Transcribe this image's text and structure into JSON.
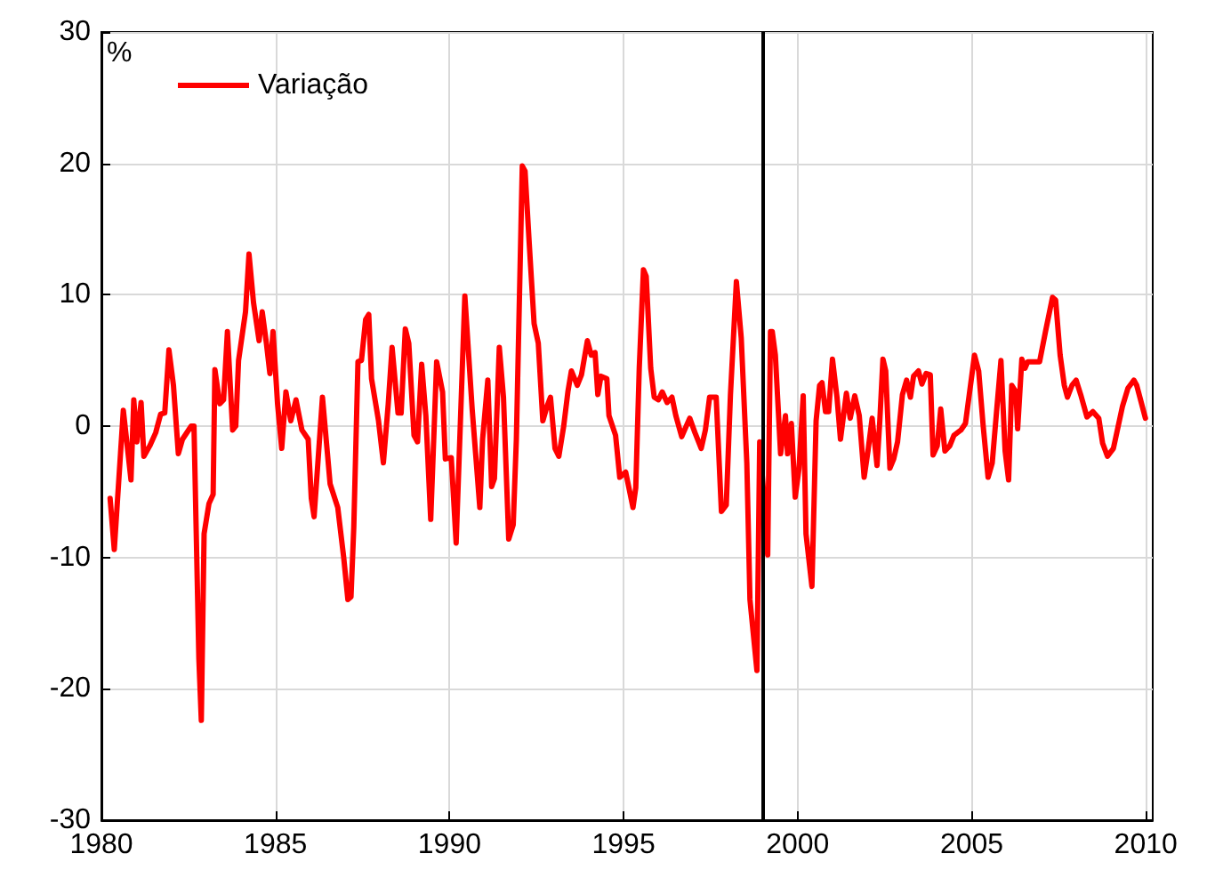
{
  "chart_data": {
    "type": "line",
    "ylabel": "%",
    "xlim": [
      1980,
      2010.2
    ],
    "ylim": [
      -30,
      30
    ],
    "xticks": [
      1980,
      1985,
      1990,
      1995,
      2000,
      2005,
      2010
    ],
    "yticks": [
      -30,
      -20,
      -10,
      0,
      10,
      20,
      30
    ],
    "grid": true,
    "legend": "top left",
    "marker": "none",
    "line_style": "solid",
    "ref_lines": [
      {
        "axis": "x",
        "value": 1999,
        "label": null,
        "color": "#000000"
      }
    ],
    "series": [
      {
        "name": "Variação",
        "color": "#ff0000",
        "x": [
          1980.25,
          1980.37,
          1980.63,
          1980.85,
          1980.93,
          1981.02,
          1981.14,
          1981.22,
          1981.39,
          1981.56,
          1981.7,
          1981.82,
          1981.94,
          1982.07,
          1982.21,
          1982.33,
          1982.58,
          1982.66,
          1982.8,
          1982.87,
          1982.95,
          1983.09,
          1983.21,
          1983.26,
          1983.4,
          1983.51,
          1983.62,
          1983.77,
          1983.86,
          1983.94,
          1984.14,
          1984.24,
          1984.37,
          1984.53,
          1984.62,
          1984.74,
          1984.84,
          1984.93,
          1985.06,
          1985.18,
          1985.3,
          1985.44,
          1985.59,
          1985.76,
          1985.94,
          1986.03,
          1986.11,
          1986.35,
          1986.57,
          1986.79,
          1986.96,
          1987.08,
          1987.17,
          1987.25,
          1987.37,
          1987.47,
          1987.59,
          1987.68,
          1987.76,
          1987.96,
          1988.1,
          1988.24,
          1988.35,
          1988.52,
          1988.61,
          1988.73,
          1988.83,
          1988.98,
          1989.08,
          1989.2,
          1989.32,
          1989.46,
          1989.63,
          1989.8,
          1989.88,
          1990.05,
          1990.19,
          1990.44,
          1990.65,
          1990.87,
          1990.95,
          1991.1,
          1991.21,
          1991.29,
          1991.43,
          1991.55,
          1991.7,
          1991.83,
          1991.92,
          1992.09,
          1992.17,
          1992.29,
          1992.43,
          1992.55,
          1992.68,
          1992.8,
          1992.9,
          1993.03,
          1993.14,
          1993.28,
          1993.4,
          1993.5,
          1993.67,
          1993.79,
          1993.96,
          1994.07,
          1994.18,
          1994.26,
          1994.35,
          1994.52,
          1994.58,
          1994.77,
          1994.89,
          1995.06,
          1995.27,
          1995.35,
          1995.45,
          1995.57,
          1995.65,
          1995.78,
          1995.88,
          1996,
          1996.11,
          1996.25,
          1996.39,
          1996.5,
          1996.67,
          1996.9,
          1997.05,
          1997.23,
          1997.35,
          1997.47,
          1997.66,
          1997.81,
          1997.95,
          1998.07,
          1998.24,
          1998.38,
          1998.54,
          1998.63,
          1998.83,
          1998.91,
          1999.02,
          1999.14,
          1999.22,
          1999.27,
          1999.36,
          1999.51,
          1999.65,
          1999.71,
          1999.82,
          1999.93,
          2000.04,
          2000.16,
          2000.24,
          2000.41,
          2000.53,
          2000.63,
          2000.7,
          2000.8,
          2000.89,
          2001,
          2001.13,
          2001.23,
          2001.4,
          2001.51,
          2001.64,
          2001.77,
          2001.91,
          2002.02,
          2002.14,
          2002.28,
          2002.36,
          2002.45,
          2002.53,
          2002.65,
          2002.76,
          2002.87,
          2003.01,
          2003.13,
          2003.24,
          2003.33,
          2003.47,
          2003.57,
          2003.69,
          2003.81,
          2003.89,
          2004.01,
          2004.11,
          2004.23,
          2004.37,
          2004.49,
          2004.69,
          2004.82,
          2004.93,
          2005.08,
          2005.2,
          2005.33,
          2005.47,
          2005.59,
          2005.72,
          2005.84,
          2005.96,
          2006.06,
          2006.15,
          2006.27,
          2006.32,
          2006.44,
          2006.53,
          2006.61,
          2006.95,
          2007.12,
          2007.32,
          2007.41,
          2007.54,
          2007.66,
          2007.75,
          2007.88,
          2008,
          2008.13,
          2008.31,
          2008.48,
          2008.65,
          2008.76,
          2008.9,
          2009.07,
          2009.33,
          2009.49,
          2009.66,
          2009.74,
          2009.99
        ],
        "values": [
          -5.5,
          -9.4,
          1.2,
          -4.1,
          2,
          -1.2,
          1.8,
          -2.3,
          -1.5,
          -0.5,
          0.9,
          1,
          5.8,
          3.1,
          -2.1,
          -1,
          0,
          0,
          -17.7,
          -22.4,
          -8.2,
          -5.9,
          -5.2,
          4.3,
          1.7,
          2,
          7.2,
          -0.3,
          0,
          5,
          8.7,
          13.1,
          9.4,
          6.5,
          8.7,
          6.3,
          4,
          7.2,
          1.7,
          -1.7,
          2.6,
          0.4,
          2,
          -0.3,
          -1,
          -5.5,
          -6.9,
          2.2,
          -4.4,
          -6.2,
          -10,
          -13.2,
          -13,
          -7.7,
          4.9,
          5,
          8.1,
          8.5,
          3.6,
          0.4,
          -2.8,
          1.7,
          6,
          1,
          1,
          7.4,
          6.3,
          -0.7,
          -1.2,
          4.7,
          0.8,
          -7.1,
          4.9,
          2.6,
          -2.5,
          -2.4,
          -8.9,
          9.9,
          1.3,
          -6.2,
          -1,
          3.5,
          -4.6,
          -4,
          6,
          2.2,
          -8.6,
          -7.5,
          -1,
          19.8,
          19.4,
          13.9,
          7.8,
          6.3,
          0.4,
          1.5,
          2.2,
          -1.7,
          -2.3,
          0,
          2.6,
          4.2,
          3.1,
          3.9,
          6.5,
          5.4,
          5.6,
          2.4,
          3.8,
          3.6,
          0.8,
          -0.7,
          -3.9,
          -3.5,
          -6.2,
          -4.7,
          4.4,
          11.9,
          11.4,
          4.4,
          2.2,
          2,
          2.6,
          1.8,
          2.2,
          0.8,
          -0.8,
          0.6,
          -0.5,
          -1.7,
          -0.3,
          2.2,
          2.2,
          -6.5,
          -6,
          2.4,
          11,
          6.7,
          -2.8,
          -13.2,
          -18.6,
          -1.2,
          -5,
          -9.8,
          7.2,
          7.2,
          5.4,
          -2.1,
          0.8,
          -2.1,
          0.2,
          -5.4,
          -3.2,
          2.3,
          -8.2,
          -12.2,
          0.4,
          3.1,
          3.3,
          1.1,
          1.1,
          5.1,
          2.2,
          -1,
          2.5,
          0.6,
          2.3,
          0.8,
          -3.9,
          -1.9,
          0.6,
          -3,
          0.4,
          5.1,
          4.2,
          -3.2,
          -2.5,
          -1.2,
          2.4,
          3.5,
          2.2,
          3.8,
          4.2,
          3.2,
          4,
          3.9,
          -2.2,
          -1.5,
          1.3,
          -1.9,
          -1.5,
          -0.7,
          -0.3,
          0.2,
          2.4,
          5.4,
          4.2,
          0,
          -3.9,
          -2.8,
          1.3,
          5,
          -1.9,
          -4.1,
          3.1,
          2.6,
          -0.2,
          5.1,
          4.4,
          4.9,
          4.9,
          7.2,
          9.8,
          9.6,
          5.4,
          3.1,
          2.2,
          3.1,
          3.5,
          2.4,
          0.7,
          1.1,
          0.6,
          -1.3,
          -2.3,
          -1.7,
          1.5,
          2.9,
          3.5,
          3.1,
          0.6
        ]
      }
    ]
  }
}
